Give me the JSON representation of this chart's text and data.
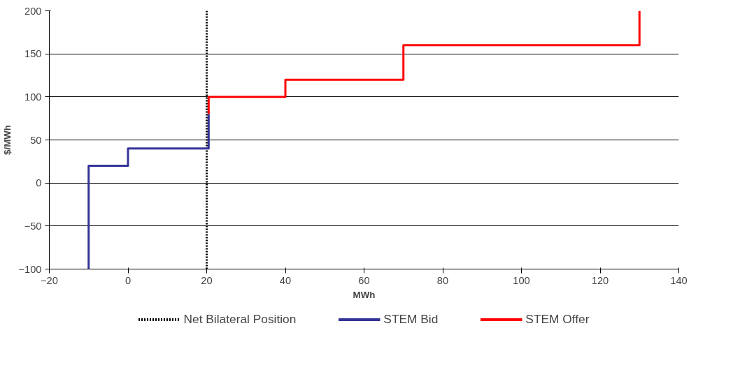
{
  "chart_data": {
    "type": "line",
    "xlabel": "MWh",
    "ylabel": "$/MWh",
    "xlim": [
      -20,
      140
    ],
    "xticks": [
      -20,
      0,
      20,
      40,
      60,
      80,
      100,
      120,
      140
    ],
    "ylim": [
      -100,
      200
    ],
    "yticks": [
      -100,
      -50,
      0,
      50,
      100,
      150,
      200
    ],
    "grid": "y",
    "legend": "bottom",
    "line_style": "solid",
    "marker": "none",
    "ref_lines": [
      {
        "axis": "x",
        "value": 20,
        "label": "Net Bilateral Position",
        "color": "#000000",
        "line_style": "dotted"
      }
    ],
    "series": [
      {
        "name": "STEM Bid",
        "color": "#333399",
        "x": [
          -10,
          -10,
          0,
          0,
          20.5,
          20.5
        ],
        "values": [
          -100,
          20,
          20,
          40,
          40,
          80
        ]
      },
      {
        "name": "STEM Offer",
        "color": "#ff0000",
        "x": [
          20.5,
          20.5,
          40,
          40,
          70,
          70,
          130,
          130
        ],
        "values": [
          80,
          100,
          100,
          120,
          120,
          160,
          160,
          200
        ]
      }
    ]
  }
}
